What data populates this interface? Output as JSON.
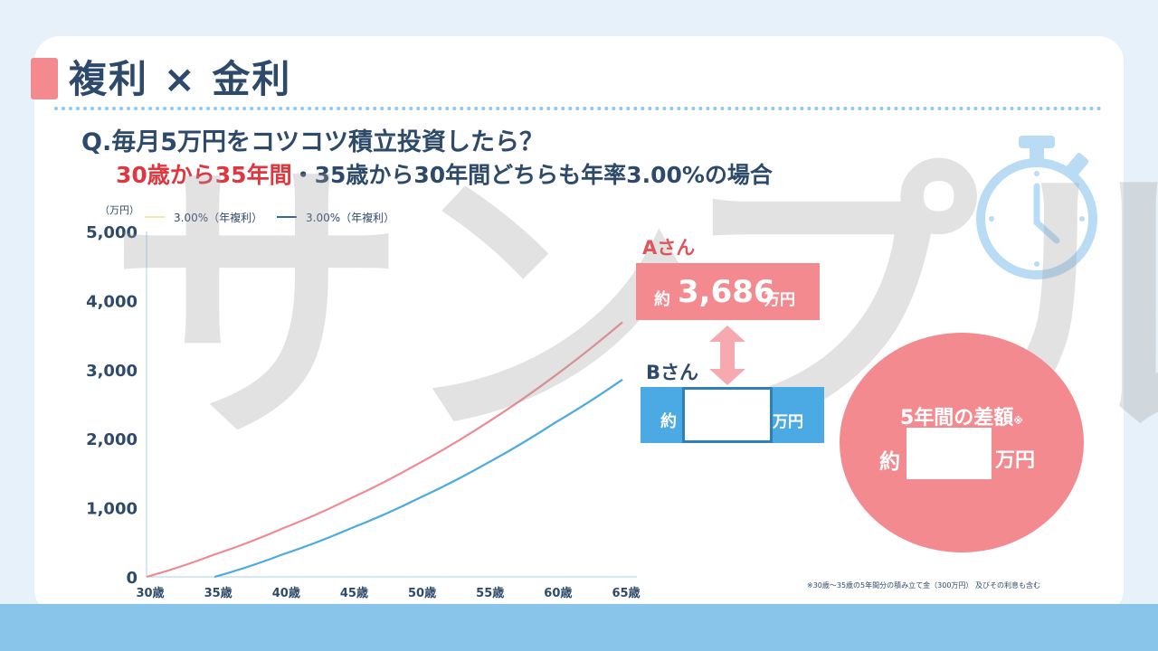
{
  "header": {
    "title": "複利 × 金利",
    "question": "Q.毎月5万円をコツコツ積立投資したら？",
    "sub_red": "30歳から35年間",
    "sub_rest": "・35歳から30年間どちらも年率3.00%の場合"
  },
  "watermark": "サンプル",
  "colors": {
    "accent_pink": "#f38a8f",
    "accent_blue": "#4ba9e3",
    "text_navy": "#2e4a6b",
    "series_a": "#ee8a93",
    "series_b": "#4ba9e3"
  },
  "chart_data": {
    "type": "line",
    "y_unit": "（万円）",
    "ylim": [
      0,
      5000
    ],
    "y_ticks": [
      "0",
      "1,000",
      "2,000",
      "3,000",
      "4,000",
      "5,000"
    ],
    "y_tick_values": [
      0,
      1000,
      2000,
      3000,
      4000,
      5000
    ],
    "x_ticks": [
      "30歳",
      "35歳",
      "40歳",
      "45歳",
      "50歳",
      "55歳",
      "60歳",
      "65歳"
    ],
    "x_tick_values": [
      30,
      35,
      40,
      45,
      50,
      55,
      60,
      65
    ],
    "xlim": [
      30,
      65
    ],
    "series": [
      {
        "name": "3.00%（年複利）",
        "color": "#ee8a93",
        "legend_color": "#f5e9a8",
        "x": [
          30,
          35,
          40,
          45,
          50,
          55,
          60,
          65
        ],
        "y": [
          0,
          324,
          700,
          1135,
          1640,
          2226,
          2905,
          3686
        ]
      },
      {
        "name": "3.00%（年複利）",
        "color": "#4ba9e3",
        "legend_color": "#2c6aa0",
        "x": [
          35,
          40,
          45,
          50,
          55,
          60,
          65
        ],
        "y": [
          0,
          324,
          700,
          1135,
          1640,
          2226,
          2856
        ]
      }
    ],
    "grid": false,
    "legend": "top-left"
  },
  "person_a": {
    "label": "Aさん",
    "prefix": "約",
    "value": "3,686",
    "suffix": "万円"
  },
  "person_b": {
    "label": "Bさん",
    "prefix": "約",
    "suffix": "万円"
  },
  "difference": {
    "title": "5年間の差額",
    "note_mark": "※",
    "prefix": "約",
    "suffix": "万円"
  },
  "footnote": "※30歳～35歳の5年間分の積み立て金（300万円） 及びその利息も含む",
  "icons": {
    "timer": "stopwatch-icon",
    "arrow": "double-arrow-icon"
  }
}
